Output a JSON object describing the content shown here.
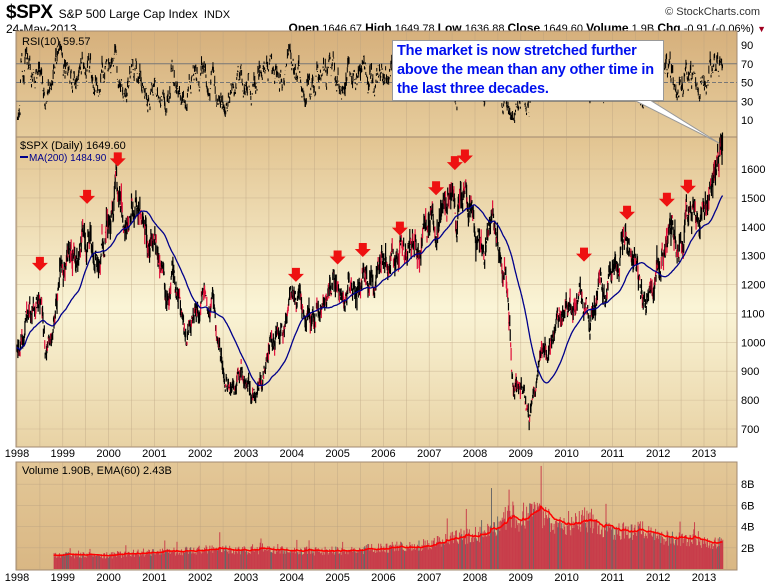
{
  "header": {
    "symbol": "$SPX",
    "name": "S&P 500 Large Cap Index",
    "exchange": "INDX",
    "date": "24-May-2013",
    "copyright": "© StockCharts.com",
    "open_label": "Open",
    "open": "1646.67",
    "high_label": "High",
    "high": "1649.78",
    "low_label": "Low",
    "low": "1636.88",
    "close_label": "Close",
    "close": "1649.60",
    "volume_label": "Volume",
    "volume": "1.9B",
    "chg_label": "Chg",
    "chg": "-0.91 (-0.06%)",
    "chg_icon": "down-triangle-icon"
  },
  "callout": {
    "text": "The market is now stretched further above the mean than any other time in the last three decades."
  },
  "colors": {
    "arrow": "#ee1111",
    "ma": "#00008b",
    "volume": "#c83c4a",
    "ema": "#ff0000",
    "callout_text": "#0010ee"
  },
  "chart_data": [
    {
      "type": "line",
      "title": "RSI(10) 59.57",
      "indicator": "RSI(10)",
      "current": 59.57,
      "ylim": [
        0,
        100
      ],
      "yticks": [
        "90",
        "70",
        "50",
        "30",
        "10"
      ],
      "reference_lines": [
        70,
        50,
        30
      ]
    },
    {
      "type": "line",
      "title": "$SPX (Daily) 1649.60",
      "legend": [
        "$SPX (Daily) 1649.60",
        "MA(200) 1484.90"
      ],
      "ylim": [
        650,
        1700
      ],
      "yticks": [
        "1600",
        "1500",
        "1400",
        "1300",
        "1200",
        "1100",
        "1000",
        "900",
        "800",
        "700"
      ],
      "xticks": [
        "1998",
        "1999",
        "2000",
        "2001",
        "2002",
        "2003",
        "2004",
        "2005",
        "2006",
        "2007",
        "2008",
        "2009",
        "2010",
        "2011",
        "2012",
        "2013"
      ],
      "xlim": [
        1998.0,
        2013.6
      ],
      "price_anchors": {
        "x": [
          1998.0,
          1998.25,
          1998.5,
          1998.62,
          1998.75,
          1999.0,
          1999.25,
          1999.5,
          1999.8,
          2000.0,
          2000.2,
          2000.5,
          2000.7,
          2000.9,
          2001.0,
          2001.25,
          2001.4,
          2001.7,
          2001.85,
          2002.0,
          2002.25,
          2002.5,
          2002.6,
          2002.78,
          2002.9,
          2003.2,
          2003.5,
          2003.75,
          2004.0,
          2004.25,
          2004.6,
          2004.9,
          2005.25,
          2005.6,
          2005.8,
          2006.0,
          2006.35,
          2006.5,
          2006.9,
          2007.15,
          2007.45,
          2007.6,
          2007.8,
          2008.0,
          2008.2,
          2008.4,
          2008.55,
          2008.7,
          2008.8,
          2008.9,
          2009.0,
          2009.18,
          2009.4,
          2009.6,
          2009.8,
          2010.0,
          2010.3,
          2010.5,
          2010.7,
          2010.9,
          2011.1,
          2011.35,
          2011.55,
          2011.62,
          2011.8,
          2011.95,
          2012.25,
          2012.4,
          2012.7,
          2012.9,
          2013.0,
          2013.2,
          2013.4
        ],
        "y": [
          960,
          1100,
          1140,
          980,
          1040,
          1230,
          1300,
          1390,
          1300,
          1450,
          1500,
          1450,
          1480,
          1330,
          1360,
          1180,
          1260,
          1000,
          1100,
          1140,
          1110,
          930,
          880,
          800,
          920,
          820,
          980,
          1020,
          1130,
          1120,
          1090,
          1200,
          1180,
          1230,
          1200,
          1280,
          1310,
          1250,
          1400,
          1430,
          1520,
          1460,
          1560,
          1400,
          1310,
          1420,
          1260,
          1200,
          900,
          850,
          900,
          700,
          900,
          990,
          1080,
          1120,
          1200,
          1060,
          1140,
          1230,
          1320,
          1350,
          1300,
          1150,
          1200,
          1260,
          1400,
          1310,
          1440,
          1400,
          1460,
          1560,
          1650
        ]
      },
      "ma200_last": 1484.9,
      "annotations": {
        "type": "down-arrow",
        "x": [
          1998.5,
          1999.53,
          2000.2,
          2004.09,
          2005.0,
          2005.55,
          2006.36,
          2007.15,
          2007.56,
          2007.78,
          2010.38,
          2011.32,
          2012.19,
          2012.65
        ],
        "y": [
          1268,
          1500,
          1630,
          1230,
          1290,
          1316,
          1390,
          1530,
          1617,
          1640,
          1300,
          1445,
          1490,
          1535
        ]
      }
    },
    {
      "type": "bar",
      "title": "Volume 1.90B, EMA(60) 2.43B",
      "unit": "B",
      "ylim": [
        0,
        10
      ],
      "yticks": [
        "8B",
        "6B",
        "4B",
        "2B"
      ],
      "xticks": [
        "1998",
        "1999",
        "2000",
        "2001",
        "2002",
        "2003",
        "2004",
        "2005",
        "2006",
        "2007",
        "2008",
        "2009",
        "2010",
        "2011",
        "2012",
        "2013"
      ],
      "volume_anchors": {
        "x": [
          1998.8,
          2000.0,
          2001.0,
          2002.0,
          2003.0,
          2004.0,
          2005.0,
          2006.0,
          2007.0,
          2007.6,
          2008.0,
          2008.5,
          2008.8,
          2009.0,
          2009.3,
          2009.6,
          2010.0,
          2010.4,
          2010.7,
          2011.0,
          2011.6,
          2011.8,
          2012.0,
          2012.5,
          2013.4
        ],
        "y": [
          1.3,
          1.3,
          1.6,
          1.8,
          1.8,
          1.7,
          1.7,
          2.0,
          2.3,
          3.0,
          3.2,
          4.0,
          5.2,
          4.5,
          5.5,
          4.6,
          3.9,
          4.8,
          3.6,
          3.5,
          3.7,
          3.3,
          3.0,
          2.8,
          2.4
        ]
      }
    }
  ]
}
